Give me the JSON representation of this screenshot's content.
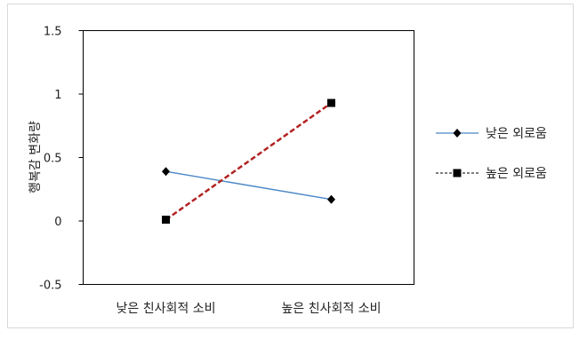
{
  "chart_data": {
    "type": "line",
    "title": "",
    "xlabel": "",
    "ylabel": "행복감 변화량",
    "categories": [
      "낮은 친사회적 소비",
      "높은 친사회적 소비"
    ],
    "ylim": [
      -0.5,
      1.5
    ],
    "yticks": [
      "1.5",
      "1",
      "0.5",
      "0",
      "-0.5"
    ],
    "ytick_values": [
      1.5,
      1,
      0.5,
      0,
      -0.5
    ],
    "grid": false,
    "legend_position": "right",
    "series": [
      {
        "name": "낮은 외로움",
        "values": [
          0.39,
          0.17
        ],
        "color": "#4a86c5",
        "dash": "solid",
        "marker": "diamond"
      },
      {
        "name": "높은 외로움",
        "values": [
          0.01,
          0.93
        ],
        "color": "#b22222",
        "dash": "dashed",
        "marker": "square"
      }
    ]
  }
}
